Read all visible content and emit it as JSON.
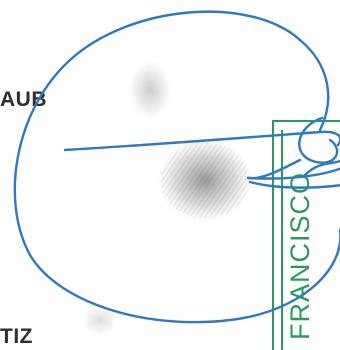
{
  "document": {
    "name_fragment_top": "AUB",
    "name_fragment_bottom": "TIZ",
    "stamp_text": "FRANCISCO"
  },
  "colors": {
    "signature_ink": "#2b79c9",
    "stamp_green": "#2a9a5a",
    "text_dark": "#2f2f2f"
  }
}
